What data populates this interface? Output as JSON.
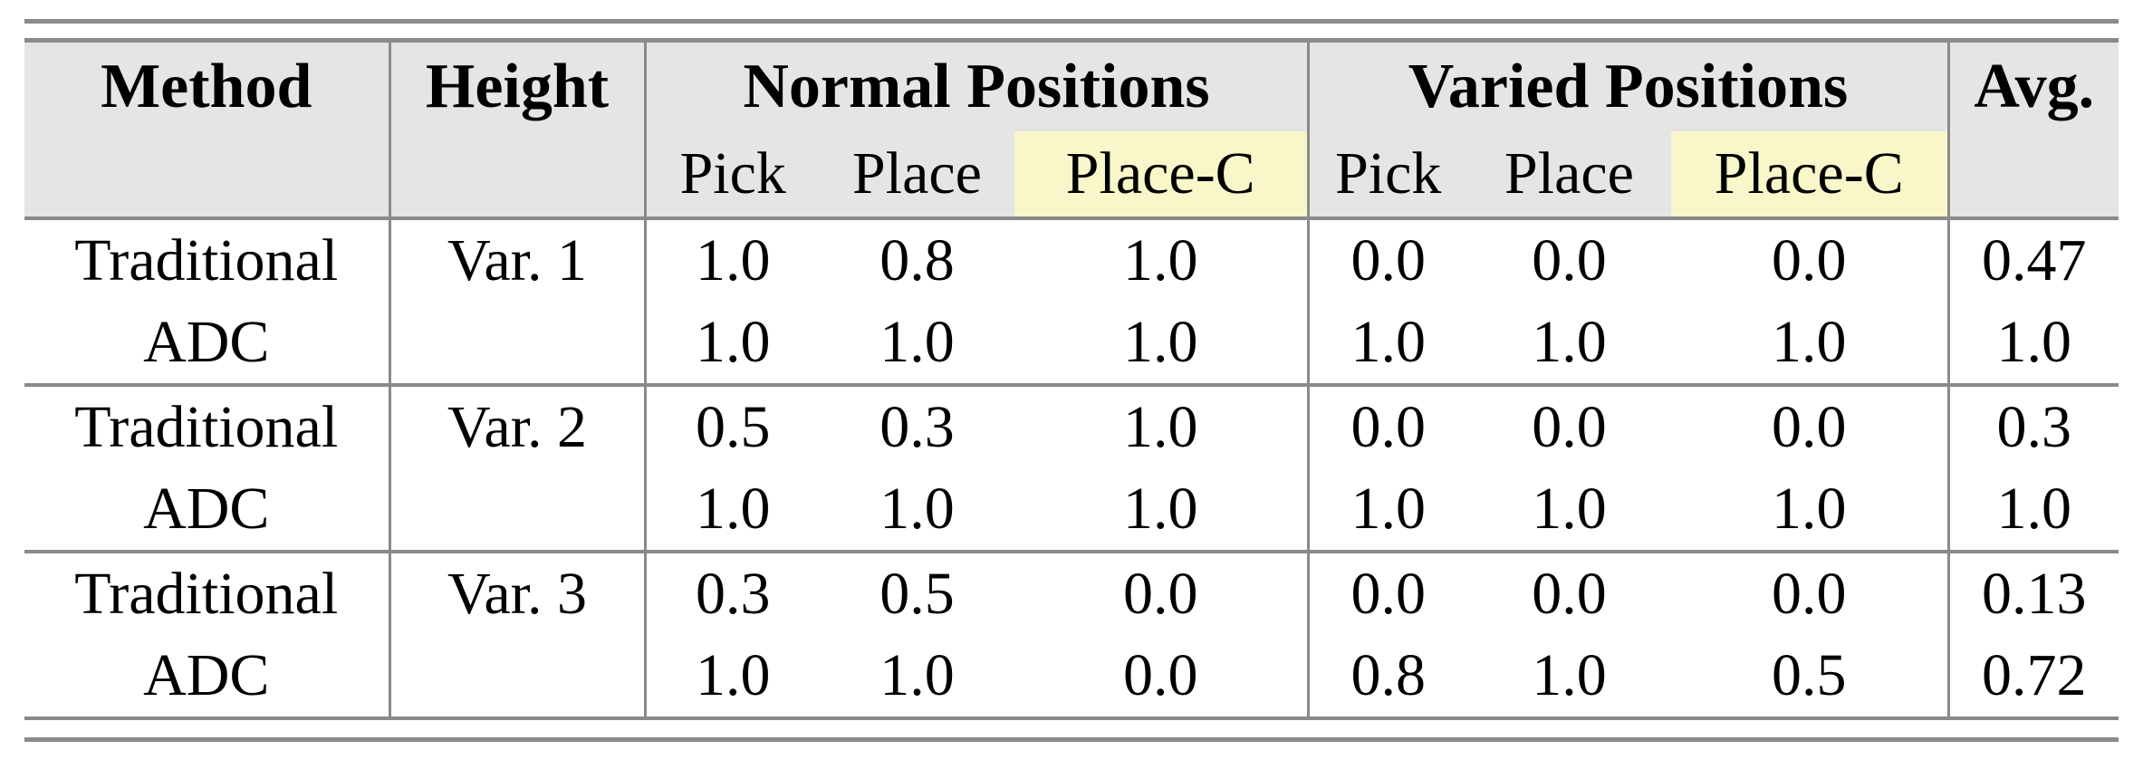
{
  "theme": {
    "header_bg": "#e5e5e5",
    "highlight_yellow": "#f9f6c9",
    "rule_gray": "#8a8a8a",
    "text_black": "#000000",
    "page_bg": "#ffffff"
  },
  "table": {
    "header": {
      "method": "Method",
      "height": "Height",
      "groups": [
        {
          "label": "Normal Positions",
          "sub": [
            "Pick",
            "Place",
            "Place-C"
          ]
        },
        {
          "label": "Varied Positions",
          "sub": [
            "Pick",
            "Place",
            "Place-C"
          ]
        }
      ],
      "avg": "Avg."
    },
    "blocks": [
      {
        "height_label": "Var. 1",
        "rows": [
          {
            "method": "Traditional",
            "normal": [
              "1.0",
              "0.8",
              "1.0"
            ],
            "varied": [
              "0.0",
              "0.0",
              "0.0"
            ],
            "avg": "0.47"
          },
          {
            "method": "ADC",
            "normal": [
              "1.0",
              "1.0",
              "1.0"
            ],
            "varied": [
              "1.0",
              "1.0",
              "1.0"
            ],
            "avg": "1.0"
          }
        ]
      },
      {
        "height_label": "Var. 2",
        "rows": [
          {
            "method": "Traditional",
            "normal": [
              "0.5",
              "0.3",
              "1.0"
            ],
            "varied": [
              "0.0",
              "0.0",
              "0.0"
            ],
            "avg": "0.3"
          },
          {
            "method": "ADC",
            "normal": [
              "1.0",
              "1.0",
              "1.0"
            ],
            "varied": [
              "1.0",
              "1.0",
              "1.0"
            ],
            "avg": "1.0"
          }
        ]
      },
      {
        "height_label": "Var. 3",
        "rows": [
          {
            "method": "Traditional",
            "normal": [
              "0.3",
              "0.5",
              "0.0"
            ],
            "varied": [
              "0.0",
              "0.0",
              "0.0"
            ],
            "avg": "0.13"
          },
          {
            "method": "ADC",
            "normal": [
              "1.0",
              "1.0",
              "0.0"
            ],
            "varied": [
              "0.8",
              "1.0",
              "0.5"
            ],
            "avg": "0.72"
          }
        ]
      }
    ]
  }
}
